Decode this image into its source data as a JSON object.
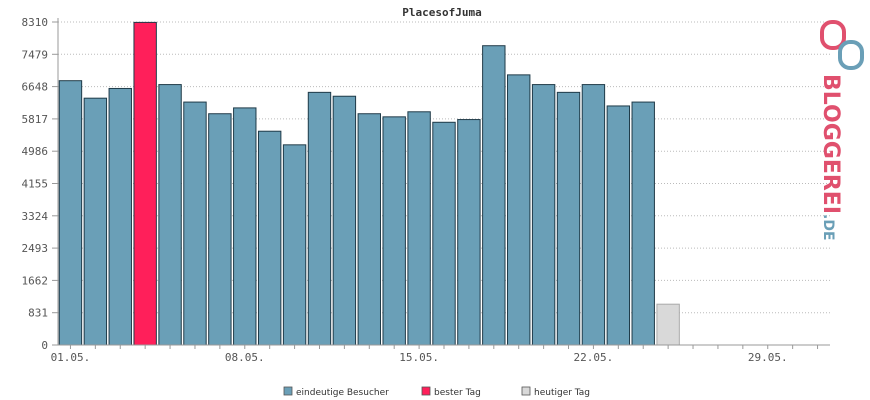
{
  "chart_data": {
    "type": "bar",
    "title": "PlacesofJuma",
    "y_ticks": [
      "0",
      "831",
      "1662",
      "2493",
      "3324",
      "4155",
      "4986",
      "5817",
      "6648",
      "7479",
      "8310"
    ],
    "ylim": [
      0,
      8310
    ],
    "x_ticks": [
      {
        "label": "01.05.",
        "day": 1
      },
      {
        "label": "08.05.",
        "day": 8
      },
      {
        "label": "15.05.",
        "day": 15
      },
      {
        "label": "22.05.",
        "day": 22
      },
      {
        "label": "29.05.",
        "day": 29
      }
    ],
    "days_in_month": 31,
    "grid": true,
    "legend_position": "bottom",
    "series": [
      {
        "name": "eindeutige Besucher",
        "color": "#6a9fb7",
        "values": [
          6800,
          6350,
          6600,
          8300,
          6700,
          6250,
          5950,
          6100,
          5500,
          5150,
          6500,
          6400,
          5950,
          5870,
          6000,
          5730,
          5800,
          7700,
          6950,
          6700,
          6500,
          6700,
          6150,
          6250,
          1050,
          0,
          0,
          0,
          0,
          0,
          0
        ]
      }
    ],
    "best_day": 4,
    "today": 25,
    "legend": [
      {
        "label": "eindeutige Besucher",
        "color": "#6a9fb7"
      },
      {
        "label": "bester Tag",
        "color": "#ff1f5a"
      },
      {
        "label": "heutiger Tag",
        "color": "#d9d9d9"
      }
    ]
  },
  "logo": {
    "text": "BLOGGEREI",
    "suffix": ".DE",
    "color_main": "#e0506e",
    "color_suffix": "#6a9fb7"
  }
}
